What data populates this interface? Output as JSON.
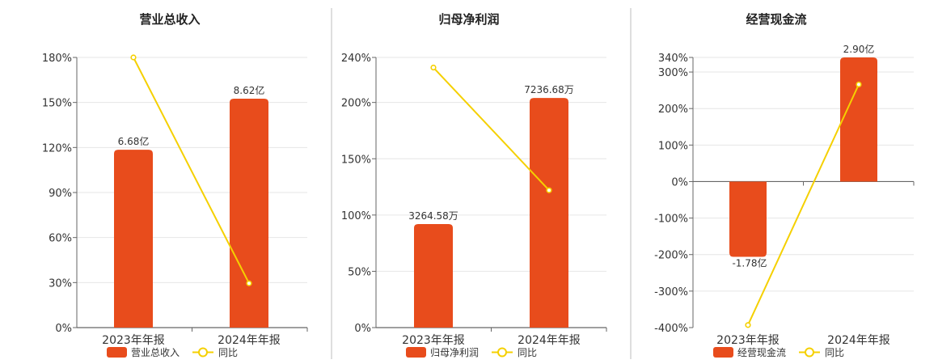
{
  "chart_data": [
    {
      "type": "bar",
      "title": "营业总收入",
      "categories": [
        "2023年年报",
        "2024年年报"
      ],
      "series": [
        {
          "name": "营业总收入",
          "kind": "bar",
          "axis": "left",
          "values": [
            118.5,
            152.5
          ],
          "value_labels": [
            "6.68亿",
            "8.62亿"
          ],
          "color": "#e84c1c"
        },
        {
          "name": "同比",
          "kind": "line",
          "axis": "left",
          "values": [
            180,
            29.5
          ],
          "color": "#f5d000"
        }
      ],
      "ylim": [
        0,
        180
      ],
      "yticks": [
        0,
        30,
        60,
        90,
        120,
        150,
        180
      ],
      "ytick_labels": [
        "0%",
        "30%",
        "60%",
        "90%",
        "120%",
        "150%",
        "180%"
      ],
      "grid": true,
      "legend": [
        {
          "label": "营业总收入",
          "marker": "bar",
          "color": "#e84c1c"
        },
        {
          "label": "同比",
          "marker": "line",
          "color": "#f5d000"
        }
      ],
      "legend_position": "bottom"
    },
    {
      "type": "bar",
      "title": "归母净利润",
      "categories": [
        "2023年年报",
        "2024年年报"
      ],
      "series": [
        {
          "name": "归母净利润",
          "kind": "bar",
          "axis": "left",
          "values": [
            92,
            204
          ],
          "value_labels": [
            "3264.58万",
            "7236.68万"
          ],
          "color": "#e84c1c"
        },
        {
          "name": "同比",
          "kind": "line",
          "axis": "left",
          "values": [
            231,
            122
          ],
          "color": "#f5d000"
        }
      ],
      "ylim": [
        0,
        240
      ],
      "yticks": [
        0,
        50,
        100,
        150,
        200,
        240
      ],
      "ytick_labels": [
        "0%",
        "50%",
        "100%",
        "150%",
        "200%",
        "240%"
      ],
      "grid": true,
      "legend": [
        {
          "label": "归母净利润",
          "marker": "bar",
          "color": "#e84c1c"
        },
        {
          "label": "同比",
          "marker": "line",
          "color": "#f5d000"
        }
      ],
      "legend_position": "bottom"
    },
    {
      "type": "bar",
      "title": "经营现金流",
      "categories": [
        "2023年年报",
        "2024年年报"
      ],
      "series": [
        {
          "name": "经营现金流",
          "kind": "bar",
          "axis": "left",
          "values": [
            -206,
            340
          ],
          "value_labels": [
            "-1.78亿",
            "2.90亿"
          ],
          "color": "#e84c1c"
        },
        {
          "name": "同比",
          "kind": "line",
          "axis": "left",
          "values": [
            -393,
            266
          ],
          "color": "#f5d000"
        }
      ],
      "ylim": [
        -400,
        340
      ],
      "yticks": [
        -400,
        -300,
        -200,
        -100,
        0,
        100,
        200,
        300,
        340
      ],
      "ytick_labels": [
        "-400%",
        "-300%",
        "-200%",
        "-100%",
        "0%",
        "100%",
        "200%",
        "300%",
        "340%"
      ],
      "grid": true,
      "legend": [
        {
          "label": "经营现金流",
          "marker": "bar",
          "color": "#e84c1c"
        },
        {
          "label": "同比",
          "marker": "line",
          "color": "#f5d000"
        }
      ],
      "legend_position": "bottom"
    }
  ]
}
